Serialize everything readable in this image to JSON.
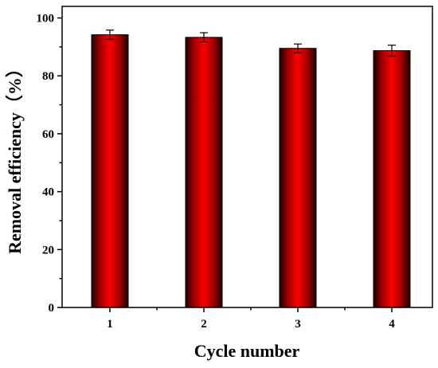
{
  "chart_data": {
    "type": "bar",
    "categories": [
      "1",
      "2",
      "3",
      "4"
    ],
    "values": [
      94.2,
      93.3,
      89.5,
      88.7
    ],
    "errors": [
      1.6,
      1.6,
      1.5,
      1.9
    ],
    "xlabel": "Cycle number",
    "ylabel": "Removal efficiency（%）",
    "ylim": [
      0,
      104
    ],
    "yticks": [
      0,
      20,
      40,
      60,
      80,
      100
    ],
    "grid": false,
    "bar_color": "#ff0000",
    "bar_edge_color": "#000000"
  }
}
